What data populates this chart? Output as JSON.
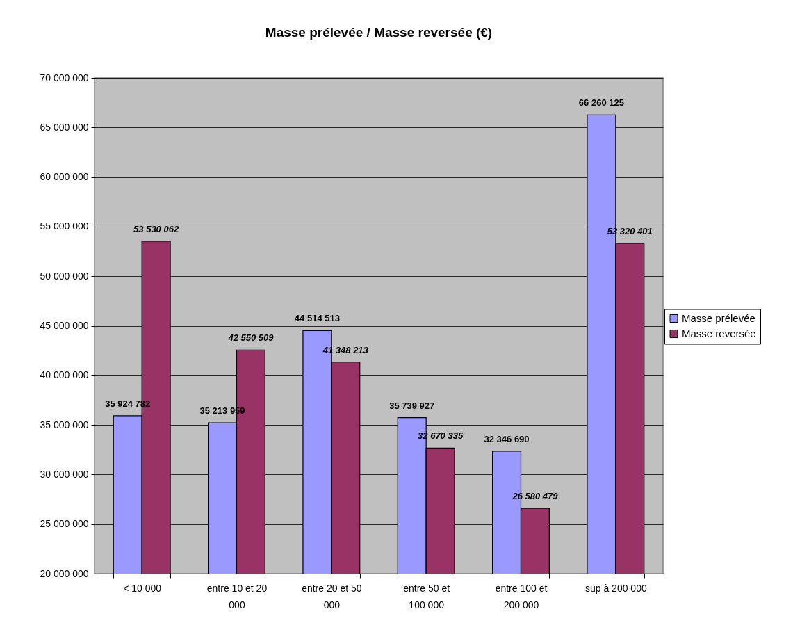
{
  "chart_data": {
    "type": "bar",
    "title": "Masse prélevée / Masse reversée (€)",
    "categories": [
      "< 10 000",
      "entre 10 et 20 000",
      "entre 20 et 50 000",
      "entre 50 et 100 000",
      "entre 100 et 200 000",
      "sup à 200 000"
    ],
    "series": [
      {
        "name": "Masse prélevée",
        "color": "#9999ff",
        "values": [
          35924782,
          35213959,
          44514513,
          35739927,
          32346690,
          66260125
        ],
        "value_labels": [
          "35 924 782",
          "35 213 959",
          "44 514 513",
          "35 739 927",
          "32 346 690",
          "66 260 125"
        ]
      },
      {
        "name": "Masse reversée",
        "color": "#993366",
        "values": [
          53530062,
          42550509,
          41348213,
          32670335,
          26580479,
          53320401
        ],
        "value_labels": [
          "53 530 062",
          "42 550 509",
          "41 348 213",
          "32 670 335",
          "26 580 479",
          "53 320 401"
        ]
      }
    ],
    "ylim": [
      20000000,
      70000000
    ],
    "yticks": [
      {
        "value": 20000000,
        "label": "20 000 000"
      },
      {
        "value": 25000000,
        "label": "25 000 000"
      },
      {
        "value": 30000000,
        "label": "30 000 000"
      },
      {
        "value": 35000000,
        "label": "35 000 000"
      },
      {
        "value": 40000000,
        "label": "40 000 000"
      },
      {
        "value": 45000000,
        "label": "45 000 000"
      },
      {
        "value": 50000000,
        "label": "50 000 000"
      },
      {
        "value": 55000000,
        "label": "55 000 000"
      },
      {
        "value": 60000000,
        "label": "60 000 000"
      },
      {
        "value": 65000000,
        "label": "65 000 000"
      },
      {
        "value": 70000000,
        "label": "70 000 000"
      }
    ],
    "grid": "y",
    "legend": "right"
  }
}
